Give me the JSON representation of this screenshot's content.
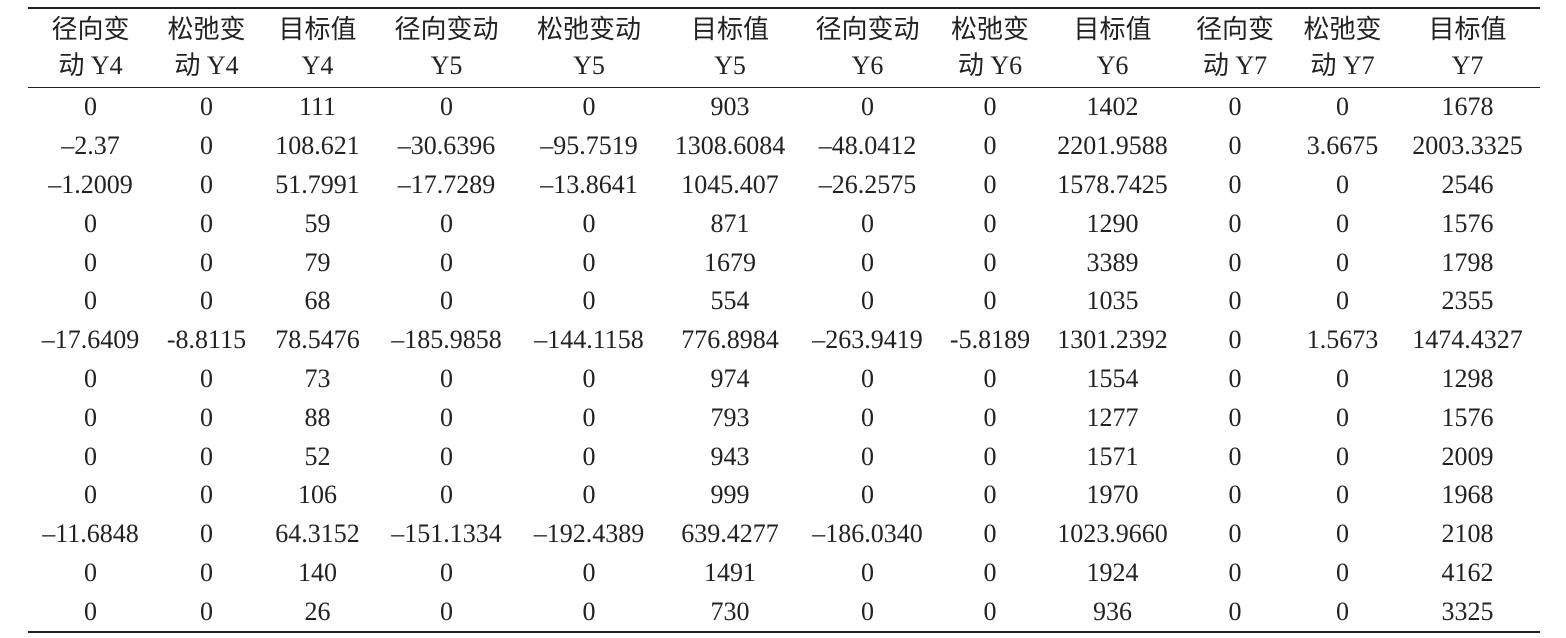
{
  "table": {
    "header": [
      [
        "径向变",
        "动 Y4"
      ],
      [
        "松弛变",
        "动 Y4"
      ],
      [
        "目标值",
        "Y4"
      ],
      [
        "径向变动",
        "Y5"
      ],
      [
        "松弛变动",
        "Y5"
      ],
      [
        "目标值",
        "Y5"
      ],
      [
        "径向变动",
        "Y6"
      ],
      [
        "松弛变",
        "动 Y6"
      ],
      [
        "目标值",
        "Y6"
      ],
      [
        "径向变",
        "动 Y7"
      ],
      [
        "松弛变",
        "动 Y7"
      ],
      [
        "目标值",
        "Y7"
      ]
    ],
    "rows": [
      [
        "0",
        "0",
        "111",
        "0",
        "0",
        "903",
        "0",
        "0",
        "1402",
        "0",
        "0",
        "1678"
      ],
      [
        "–2.37",
        "0",
        "108.621",
        "–30.6396",
        "–95.7519",
        "1308.6084",
        "–48.0412",
        "0",
        "2201.9588",
        "0",
        "3.6675",
        "2003.3325"
      ],
      [
        "–1.2009",
        "0",
        "51.7991",
        "–17.7289",
        "–13.8641",
        "1045.407",
        "–26.2575",
        "0",
        "1578.7425",
        "0",
        "0",
        "2546"
      ],
      [
        "0",
        "0",
        "59",
        "0",
        "0",
        "871",
        "0",
        "0",
        "1290",
        "0",
        "0",
        "1576"
      ],
      [
        "0",
        "0",
        "79",
        "0",
        "0",
        "1679",
        "0",
        "0",
        "3389",
        "0",
        "0",
        "1798"
      ],
      [
        "0",
        "0",
        "68",
        "0",
        "0",
        "554",
        "0",
        "0",
        "1035",
        "0",
        "0",
        "2355"
      ],
      [
        "–17.6409",
        "-8.8115",
        "78.5476",
        "–185.9858",
        "–144.1158",
        "776.8984",
        "–263.9419",
        "-5.8189",
        "1301.2392",
        "0",
        "1.5673",
        "1474.4327"
      ],
      [
        "0",
        "0",
        "73",
        "0",
        "0",
        "974",
        "0",
        "0",
        "1554",
        "0",
        "0",
        "1298"
      ],
      [
        "0",
        "0",
        "88",
        "0",
        "0",
        "793",
        "0",
        "0",
        "1277",
        "0",
        "0",
        "1576"
      ],
      [
        "0",
        "0",
        "52",
        "0",
        "0",
        "943",
        "0",
        "0",
        "1571",
        "0",
        "0",
        "2009"
      ],
      [
        "0",
        "0",
        "106",
        "0",
        "0",
        "999",
        "0",
        "0",
        "1970",
        "0",
        "0",
        "1968"
      ],
      [
        "–11.6848",
        "0",
        "64.3152",
        "–151.1334",
        "–192.4389",
        "639.4277",
        "–186.0340",
        "0",
        "1023.9660",
        "0",
        "0",
        "2108"
      ],
      [
        "0",
        "0",
        "140",
        "0",
        "0",
        "1491",
        "0",
        "0",
        "1924",
        "0",
        "0",
        "4162"
      ],
      [
        "0",
        "0",
        "26",
        "0",
        "0",
        "730",
        "0",
        "0",
        "936",
        "0",
        "0",
        "3325"
      ]
    ]
  }
}
